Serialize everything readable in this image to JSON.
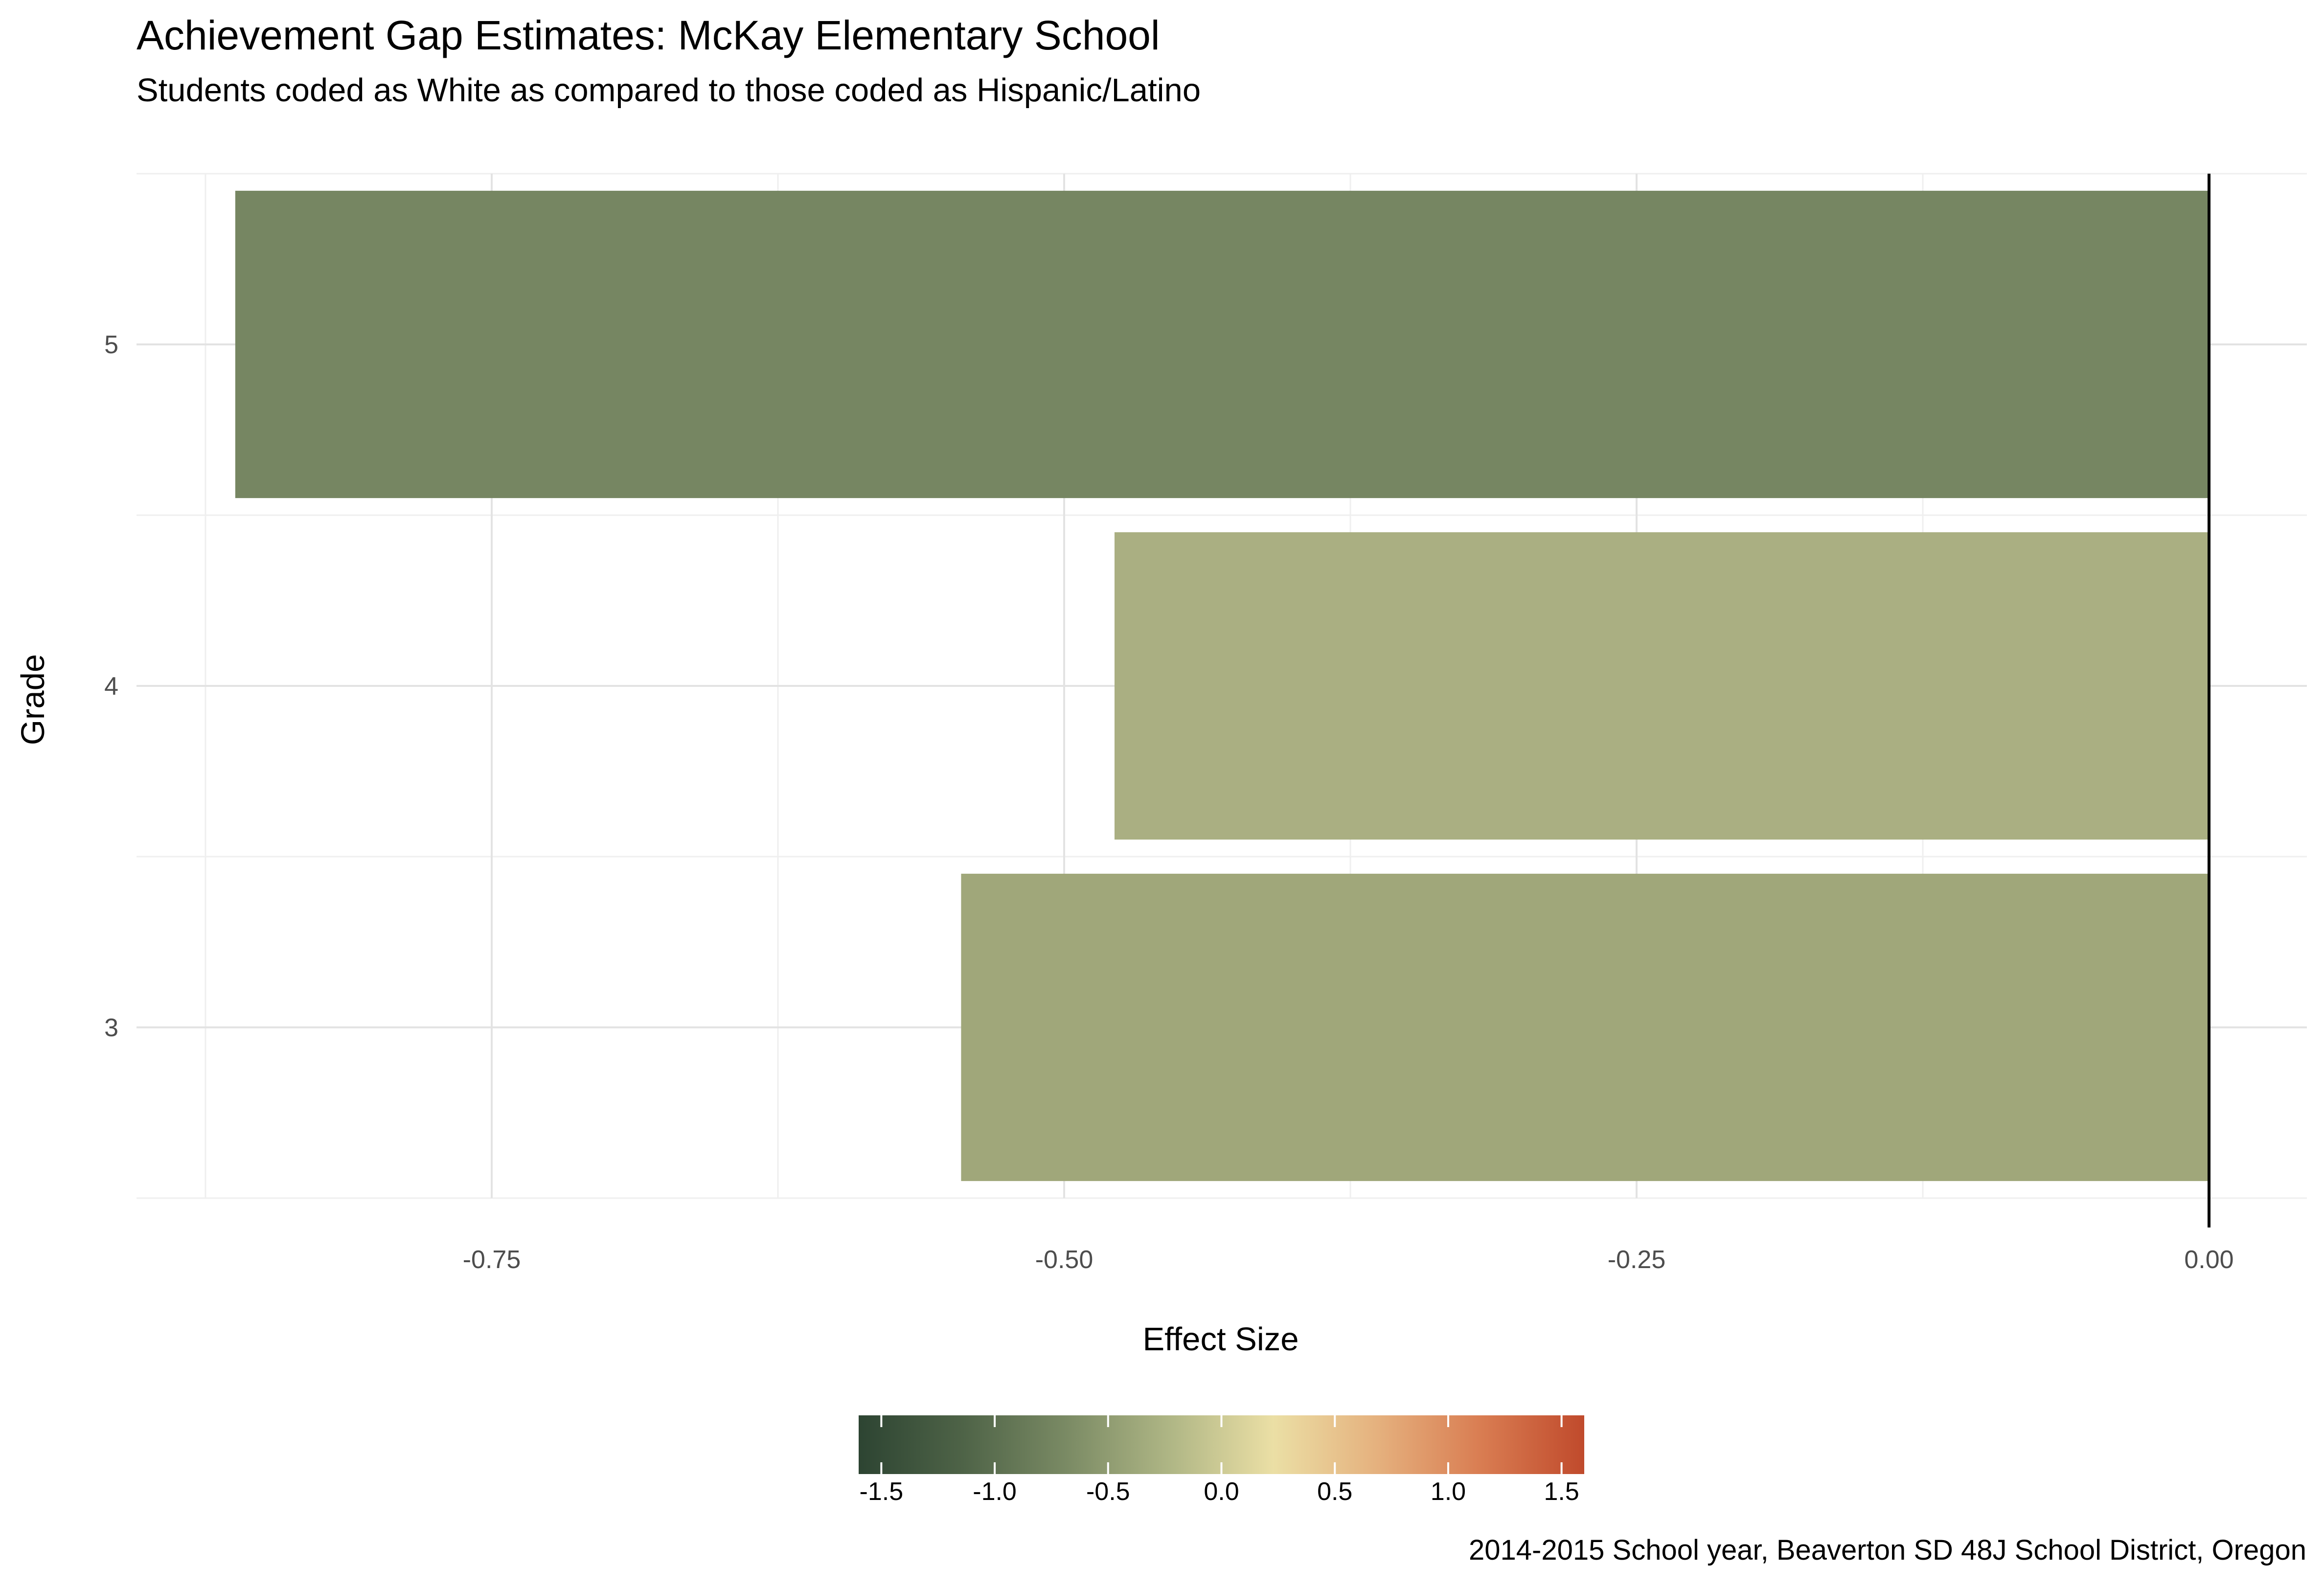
{
  "chart_data": {
    "type": "bar",
    "orientation": "horizontal",
    "title": "Achievement Gap Estimates: McKay Elementary School",
    "subtitle": "Students coded as White as compared to those coded as Hispanic/Latino",
    "xlabel": "Effect Size",
    "ylabel": "Grade",
    "caption": "2014-2015 School year, Beaverton SD 48J School District, Oregon",
    "categories": [
      "3",
      "4",
      "5"
    ],
    "values": [
      -0.545,
      -0.478,
      -0.862
    ],
    "colors": [
      "#a0a77a",
      "#aaaf82",
      "#768662"
    ],
    "xlim": [
      -0.9,
      0.02
    ],
    "x_ticks": [
      -0.75,
      -0.5,
      -0.25,
      0.0
    ],
    "x_tick_labels": [
      "-0.75",
      "-0.50",
      "-0.25",
      "0.00"
    ],
    "reference_line": 0.0,
    "grid": true,
    "legend": {
      "type": "colorbar",
      "position": "bottom",
      "range": [
        -1.6,
        1.6
      ],
      "ticks": [
        -1.5,
        -1.0,
        -0.5,
        0.0,
        0.5,
        1.0,
        1.5
      ],
      "tick_labels": [
        "-1.5",
        "-1.0",
        "-0.5",
        "0.0",
        "0.5",
        "1.0",
        "1.5"
      ],
      "colors": [
        "#2d4432",
        "#4e6347",
        "#7a8a64",
        "#afb685",
        "#ebdfa5",
        "#e5b17e",
        "#d97d52",
        "#c04a2c"
      ]
    }
  }
}
